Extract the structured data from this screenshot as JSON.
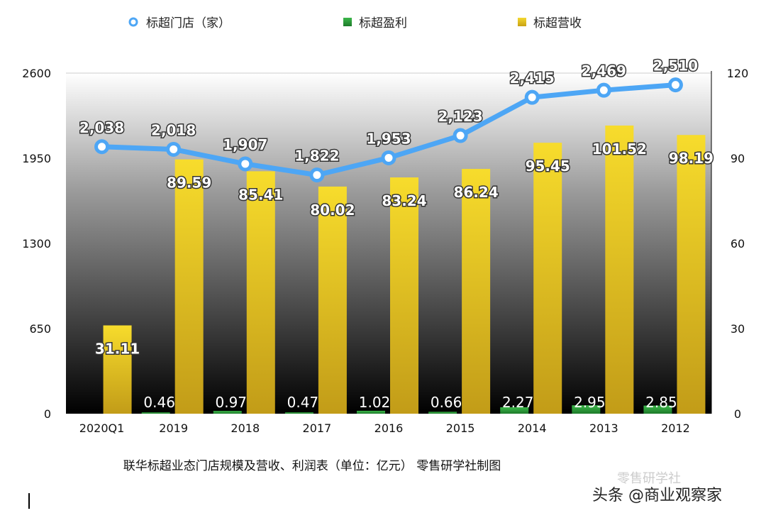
{
  "chart_data": {
    "type": "bar",
    "categories": [
      "2020Q1",
      "2019",
      "2018",
      "2017",
      "2016",
      "2015",
      "2014",
      "2013",
      "2012"
    ],
    "series": [
      {
        "name": "标超门店（家）",
        "type": "line",
        "axis": "left",
        "color": "#4da6f5",
        "values": [
          2038,
          2018,
          1907,
          1822,
          1953,
          2123,
          2415,
          2469,
          2510
        ],
        "labels": [
          "2,038",
          "2,018",
          "1,907",
          "1,822",
          "1,953",
          "2,123",
          "2,415",
          "2,469",
          "2,510"
        ]
      },
      {
        "name": "标超盈利",
        "type": "bar",
        "axis": "right",
        "color": "#2a9a3a",
        "values": [
          null,
          0.46,
          0.97,
          0.47,
          1.02,
          0.66,
          2.27,
          2.95,
          2.85
        ],
        "labels": [
          "",
          "0.46",
          "0.97",
          "0.47",
          "1.02",
          "0.66",
          "2.27",
          "2.95",
          "2.85"
        ]
      },
      {
        "name": "标超营收",
        "type": "bar",
        "axis": "right",
        "color": "#e8c320",
        "values": [
          31.11,
          89.59,
          85.41,
          80.02,
          83.24,
          86.24,
          95.45,
          101.52,
          98.19
        ],
        "labels": [
          "31.11",
          "89.59",
          "85.41",
          "80.02",
          "83.24",
          "86.24",
          "95.45",
          "101.52",
          "98.19"
        ]
      }
    ],
    "left_axis": {
      "ticks": [
        "0",
        "650",
        "1300",
        "1950",
        "2600"
      ],
      "ylim": [
        0,
        2600
      ]
    },
    "right_axis": {
      "ticks": [
        "0",
        "30",
        "60",
        "90",
        "120"
      ],
      "ylim": [
        0,
        120
      ]
    },
    "legend_position": "top",
    "caption": "联华标超业态门店规模及营收、利润表（单位：亿元）    零售研学社制图"
  },
  "watermark": "头条 @商业观察家",
  "watermark_faint": "零售研学社"
}
